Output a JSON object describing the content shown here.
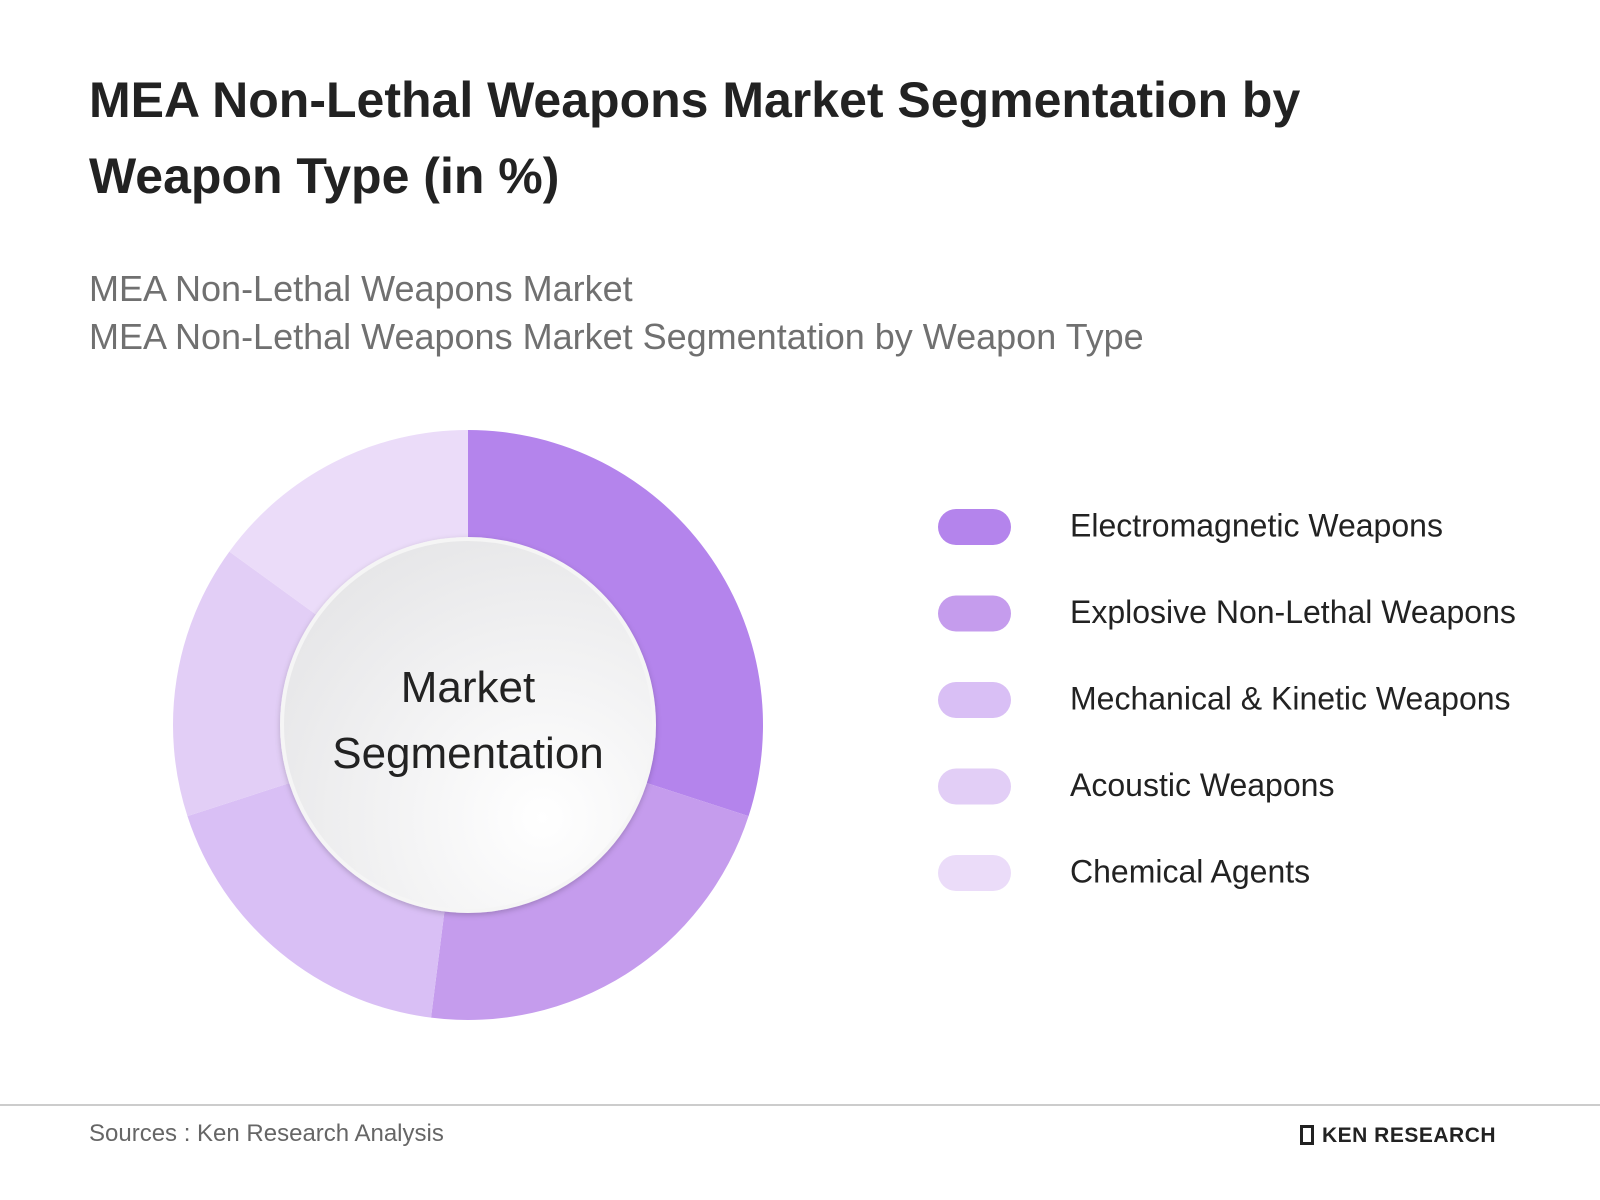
{
  "chart_data": {
    "type": "donut",
    "title": "MEA Non-Lethal Weapons Market Segmentation by Weapon Type (in %)",
    "subtitles": [
      "MEA Non-Lethal Weapons Market",
      "MEA Non-Lethal Weapons Market Segmentation by Weapon Type"
    ],
    "center_label": "Market Segmentation",
    "categories": [
      "Electromagnetic Weapons",
      "Explosive Non-Lethal Weapons",
      "Mechanical & Kinetic Weapons",
      "Acoustic Weapons",
      "Chemical Agents"
    ],
    "values": [
      30,
      22,
      18,
      15,
      15
    ],
    "colors": [
      "#b484ec",
      "#c59ced",
      "#d9bff5",
      "#e2cef6",
      "#ebdcf9"
    ],
    "legend": "right",
    "source": "Sources : Ken Research Analysis",
    "logo": "KEN RESEARCH"
  }
}
